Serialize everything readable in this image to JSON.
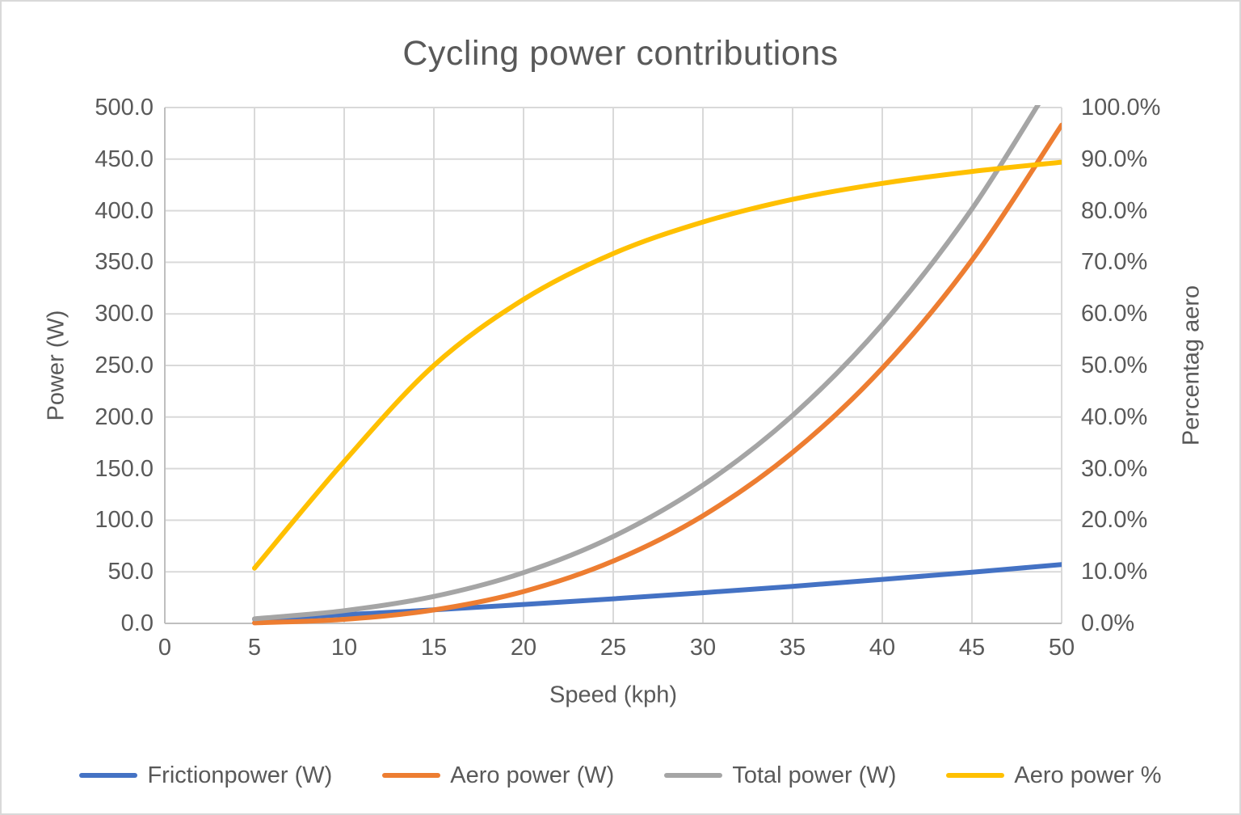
{
  "chart_data": {
    "type": "line",
    "title": "Cycling power contributions",
    "xlabel": "Speed (kph)",
    "ylabel": "Power (W)",
    "ylabel_secondary": "Percentag aero",
    "x": [
      5,
      10,
      15,
      20,
      25,
      30,
      35,
      40,
      45,
      50
    ],
    "xlim": [
      0,
      50
    ],
    "ylim": [
      0,
      500
    ],
    "ylim_secondary_pct": [
      0,
      100
    ],
    "grid": true,
    "legend_position": "bottom",
    "x_tick_labels": [
      "0",
      "5",
      "10",
      "15",
      "20",
      "25",
      "30",
      "35",
      "40",
      "45",
      "50"
    ],
    "y_tick_labels": [
      "500.0",
      "450.0",
      "400.0",
      "350.0",
      "300.0",
      "250.0",
      "200.0",
      "150.0",
      "100.0",
      "50.0",
      "0.0"
    ],
    "y2_tick_labels": [
      "100.0%",
      "90.0%",
      "80.0%",
      "70.0%",
      "60.0%",
      "50.0%",
      "40.0%",
      "30.0%",
      "20.0%",
      "10.0%",
      "0.0%"
    ],
    "series": [
      {
        "name": "Frictionpower (W)",
        "axis": "primary",
        "color": "#4472C4",
        "values": [
          4.0,
          8.4,
          13.1,
          18.3,
          23.8,
          29.7,
          35.9,
          42.6,
          49.6,
          57.0
        ]
      },
      {
        "name": "Aero power (W)",
        "axis": "primary",
        "color": "#ED7D31",
        "values": [
          0.5,
          3.9,
          13.0,
          30.9,
          60.4,
          104.3,
          165.7,
          247.3,
          352.1,
          483.0
        ]
      },
      {
        "name": "Total power (W)",
        "axis": "primary",
        "color": "#A5A5A5",
        "values": [
          4.5,
          12.3,
          26.1,
          49.2,
          84.2,
          134.0,
          201.6,
          289.9,
          401.7,
          540.0
        ]
      },
      {
        "name": "Aero power %",
        "axis": "secondary",
        "color": "#FFC000",
        "values": [
          10.7,
          31.4,
          50.0,
          62.8,
          71.7,
          77.8,
          82.2,
          85.3,
          87.6,
          89.4
        ]
      }
    ]
  },
  "colors": {
    "text": "#595959",
    "gridline": "#D9D9D9",
    "axis_line": "#BFBFBF",
    "background": "#FFFFFF",
    "border": "#D9D9D9"
  }
}
